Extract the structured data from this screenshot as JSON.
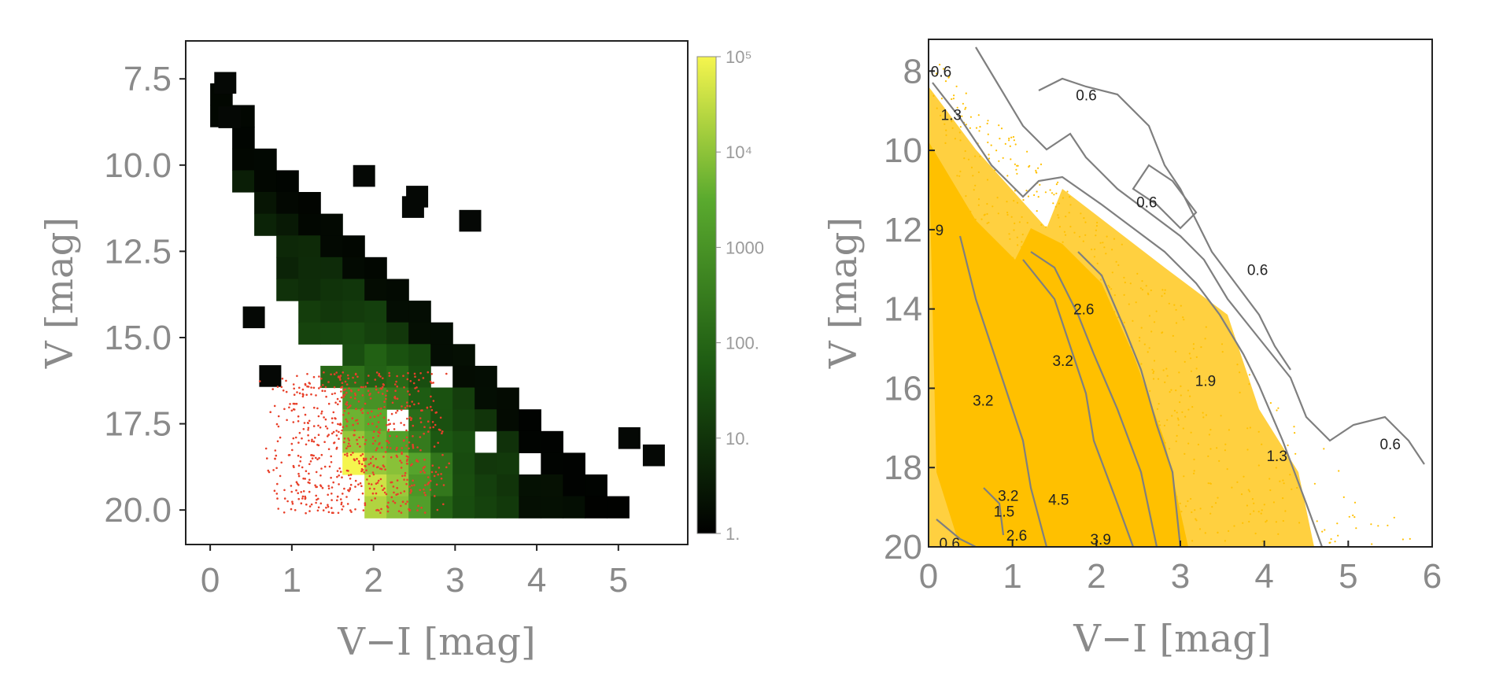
{
  "chart_data": [
    {
      "type": "heatmap",
      "xlabel": "V−I [mag]",
      "ylabel": "V [mag]",
      "xlim": [
        -0.3,
        5.85
      ],
      "ylim": [
        21.0,
        6.4
      ],
      "xticks": [
        "0",
        "1",
        "2",
        "3",
        "4",
        "5"
      ],
      "yticks": [
        "7.5",
        "10.0",
        "12.5",
        "15.0",
        "17.5",
        "20.0"
      ],
      "bin_width_color": 0.27,
      "bin_height_mag": 0.63,
      "colorbar": {
        "scale": "log",
        "range": [
          1,
          100000
        ],
        "labels": [
          "10⁵",
          "10⁴",
          "1000",
          "100.",
          "10.",
          "1."
        ],
        "colors": [
          "#f5f54e",
          "#5aaa2e",
          "#000000"
        ]
      },
      "overlay": "red points (individual stars) concentrated near V−I 1.3–2.5, V 16–20"
    },
    {
      "type": "scatter",
      "xlabel": "V−I [mag]",
      "ylabel": "V [mag]",
      "xlim": [
        0,
        6
      ],
      "ylim": [
        20,
        7.2
      ],
      "xticks": [
        "0",
        "1",
        "2",
        "3",
        "4",
        "5",
        "6"
      ],
      "yticks": [
        "8",
        "10",
        "12",
        "14",
        "16",
        "18",
        "20"
      ],
      "point_color": "#ffc000",
      "contour_color": "#808080",
      "contour_labels": [
        {
          "text": "0.6",
          "x": 0.15,
          "y": 8.0
        },
        {
          "text": "1.3",
          "x": 0.27,
          "y": 9.1
        },
        {
          "text": "0.6",
          "x": 1.88,
          "y": 8.6
        },
        {
          "text": "0.6",
          "x": 2.6,
          "y": 11.3
        },
        {
          "text": "9",
          "x": 0.13,
          "y": 12.0
        },
        {
          "text": "0.6",
          "x": 3.92,
          "y": 13.0
        },
        {
          "text": "2.6",
          "x": 1.85,
          "y": 14.0
        },
        {
          "text": "3.2",
          "x": 1.6,
          "y": 15.3
        },
        {
          "text": "3.2",
          "x": 0.65,
          "y": 16.3
        },
        {
          "text": "1.9",
          "x": 3.3,
          "y": 15.8
        },
        {
          "text": "0.6",
          "x": 5.5,
          "y": 17.4
        },
        {
          "text": "1.3",
          "x": 4.15,
          "y": 17.7
        },
        {
          "text": "3.2",
          "x": 0.95,
          "y": 18.7
        },
        {
          "text": "1.5",
          "x": 0.9,
          "y": 19.1
        },
        {
          "text": "4.5",
          "x": 1.55,
          "y": 18.8
        },
        {
          "text": "2.6",
          "x": 1.05,
          "y": 19.7
        },
        {
          "text": "3.9",
          "x": 2.05,
          "y": 19.8
        },
        {
          "text": "0.6",
          "x": 0.25,
          "y": 19.9
        }
      ]
    }
  ]
}
